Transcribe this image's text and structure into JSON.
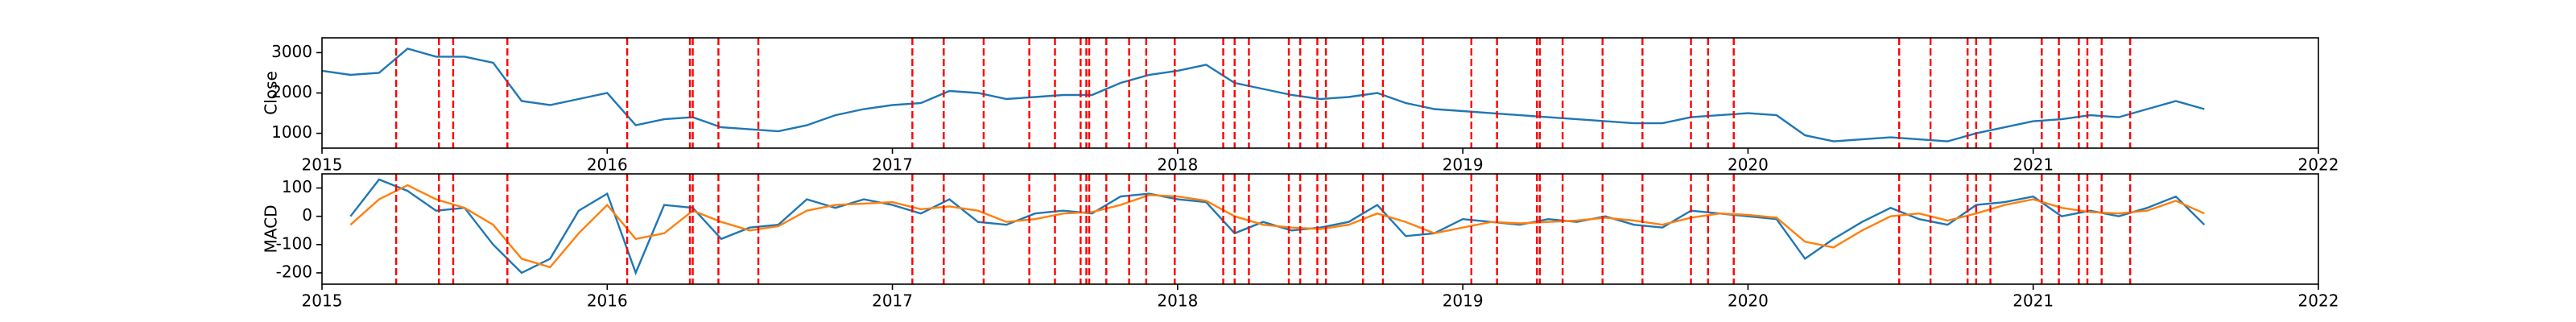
{
  "chart_data": [
    {
      "type": "line",
      "ylabel": "Close",
      "x": [
        2015.0,
        2015.1,
        2015.2,
        2015.3,
        2015.4,
        2015.5,
        2015.6,
        2015.7,
        2015.8,
        2015.9,
        2016.0,
        2016.1,
        2016.2,
        2016.3,
        2016.4,
        2016.5,
        2016.6,
        2016.7,
        2016.8,
        2016.9,
        2017.0,
        2017.1,
        2017.2,
        2017.3,
        2017.4,
        2017.5,
        2017.6,
        2017.7,
        2017.8,
        2017.9,
        2018.0,
        2018.1,
        2018.2,
        2018.3,
        2018.4,
        2018.5,
        2018.6,
        2018.7,
        2018.8,
        2018.9,
        2019.0,
        2019.1,
        2019.2,
        2019.3,
        2019.4,
        2019.5,
        2019.6,
        2019.7,
        2019.8,
        2019.9,
        2020.0,
        2020.1,
        2020.2,
        2020.3,
        2020.4,
        2020.5,
        2020.6,
        2020.7,
        2020.8,
        2020.9,
        2021.0,
        2021.1,
        2021.2,
        2021.3,
        2021.4,
        2021.5,
        2021.6
      ],
      "series": [
        {
          "color": "#1f77b4",
          "values": [
            2550,
            2450,
            2500,
            3100,
            2900,
            2900,
            2750,
            1800,
            1700,
            1850,
            2000,
            1200,
            1350,
            1400,
            1150,
            1100,
            1050,
            1200,
            1450,
            1600,
            1700,
            1750,
            2050,
            2000,
            1850,
            1900,
            1950,
            1950,
            2250,
            2450,
            2550,
            2700,
            2250,
            2100,
            1950,
            1850,
            1900,
            2000,
            1750,
            1600,
            1550,
            1500,
            1450,
            1400,
            1350,
            1300,
            1250,
            1250,
            1400,
            1450,
            1500,
            1450,
            950,
            800,
            850,
            900,
            850,
            800,
            1000,
            1150,
            1300,
            1350,
            1450,
            1400,
            1600,
            1800,
            1600
          ]
        }
      ],
      "xlim": [
        2015,
        2022
      ],
      "xticks": [
        2015,
        2016,
        2017,
        2018,
        2019,
        2020,
        2021,
        2022
      ],
      "ylim": [
        633,
        3367
      ],
      "yticks": [
        1000,
        2000,
        3000
      ],
      "vline_color": "#ff0000",
      "vlines": [
        2015.26,
        2015.41,
        2015.46,
        2015.65,
        2016.07,
        2016.29,
        2016.3,
        2016.39,
        2016.53,
        2017.07,
        2017.18,
        2017.32,
        2017.48,
        2017.57,
        2017.66,
        2017.68,
        2017.69,
        2017.75,
        2017.83,
        2017.89,
        2017.99,
        2018.16,
        2018.2,
        2018.25,
        2018.39,
        2018.43,
        2018.49,
        2018.52,
        2018.65,
        2018.72,
        2018.86,
        2019.03,
        2019.12,
        2019.26,
        2019.27,
        2019.35,
        2019.49,
        2019.63,
        2019.8,
        2019.86,
        2019.95,
        2020.53,
        2020.64,
        2020.77,
        2020.8,
        2020.85,
        2021.03,
        2021.09,
        2021.16,
        2021.19,
        2021.24,
        2021.34
      ]
    },
    {
      "type": "line",
      "ylabel": "MACD",
      "x": [
        2015.0,
        2015.1,
        2015.2,
        2015.3,
        2015.4,
        2015.5,
        2015.6,
        2015.7,
        2015.8,
        2015.9,
        2016.0,
        2016.1,
        2016.2,
        2016.3,
        2016.4,
        2016.5,
        2016.6,
        2016.7,
        2016.8,
        2016.9,
        2017.0,
        2017.1,
        2017.2,
        2017.3,
        2017.4,
        2017.5,
        2017.6,
        2017.7,
        2017.8,
        2017.9,
        2018.0,
        2018.1,
        2018.2,
        2018.3,
        2018.4,
        2018.5,
        2018.6,
        2018.7,
        2018.8,
        2018.9,
        2019.0,
        2019.1,
        2019.2,
        2019.3,
        2019.4,
        2019.5,
        2019.6,
        2019.7,
        2019.8,
        2019.9,
        2020.0,
        2020.1,
        2020.2,
        2020.3,
        2020.4,
        2020.5,
        2020.6,
        2020.7,
        2020.8,
        2020.9,
        2021.0,
        2021.1,
        2021.2,
        2021.3,
        2021.4,
        2021.5,
        2021.6
      ],
      "series": [
        {
          "color": "#1f77b4",
          "values": [
            null,
            0,
            130,
            90,
            20,
            30,
            -100,
            -200,
            -150,
            20,
            80,
            -200,
            40,
            30,
            -80,
            -40,
            -30,
            60,
            30,
            60,
            40,
            10,
            60,
            -20,
            -30,
            10,
            20,
            10,
            70,
            80,
            60,
            50,
            -60,
            -20,
            -50,
            -40,
            -20,
            40,
            -70,
            -60,
            -10,
            -20,
            -30,
            -10,
            -20,
            0,
            -30,
            -40,
            20,
            10,
            0,
            -10,
            -150,
            -80,
            -20,
            30,
            -10,
            -30,
            40,
            50,
            70,
            0,
            20,
            0,
            30,
            70,
            -30
          ]
        },
        {
          "color": "#ff7f0e",
          "values": [
            null,
            -30,
            60,
            110,
            60,
            30,
            -30,
            -150,
            -180,
            -60,
            40,
            -80,
            -60,
            20,
            -20,
            -50,
            -35,
            20,
            40,
            45,
            50,
            25,
            35,
            20,
            -20,
            -10,
            10,
            15,
            40,
            75,
            70,
            55,
            0,
            -30,
            -40,
            -45,
            -30,
            10,
            -20,
            -60,
            -40,
            -20,
            -25,
            -20,
            -15,
            -5,
            -15,
            -30,
            -5,
            10,
            5,
            -5,
            -90,
            -110,
            -50,
            0,
            10,
            -15,
            10,
            40,
            60,
            30,
            15,
            10,
            20,
            55,
            10
          ]
        }
      ],
      "xlim": [
        2015,
        2022
      ],
      "xticks": [
        2015,
        2016,
        2017,
        2018,
        2019,
        2020,
        2021,
        2022
      ],
      "ylim": [
        -240,
        150
      ],
      "yticks": [
        -200,
        -100,
        0,
        100
      ],
      "vline_color": "#ff0000",
      "vlines": [
        2015.26,
        2015.41,
        2015.46,
        2015.65,
        2016.07,
        2016.29,
        2016.3,
        2016.39,
        2016.53,
        2017.07,
        2017.18,
        2017.32,
        2017.48,
        2017.57,
        2017.66,
        2017.68,
        2017.69,
        2017.75,
        2017.83,
        2017.89,
        2017.99,
        2018.16,
        2018.2,
        2018.25,
        2018.39,
        2018.43,
        2018.49,
        2018.52,
        2018.65,
        2018.72,
        2018.86,
        2019.03,
        2019.12,
        2019.26,
        2019.27,
        2019.35,
        2019.49,
        2019.63,
        2019.8,
        2019.86,
        2019.95,
        2020.53,
        2020.64,
        2020.77,
        2020.8,
        2020.85,
        2021.03,
        2021.09,
        2021.16,
        2021.19,
        2021.24,
        2021.34
      ]
    }
  ]
}
